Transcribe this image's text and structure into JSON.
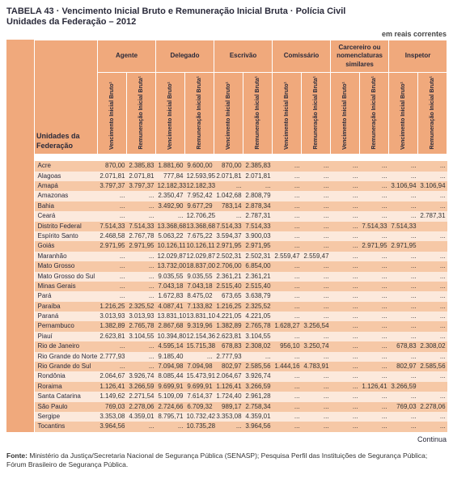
{
  "title": "TABELA 43 · Vencimento Inicial Bruto e Remuneração Inicial Bruta · Polícia Civil",
  "subtitle": "Unidades da Federação – 2012",
  "unit_label": "em reais correntes",
  "uf_header": "Unidades da Federação",
  "groups": [
    "Agente",
    "Delegado",
    "Escrivão",
    "Comissário",
    "Carcereiro ou nomenclaturas similares",
    "Inspetor"
  ],
  "sub_a": "Vencimento Inicial Bruto¹",
  "sub_b": "Remuneração Inicial Bruta¹",
  "continues": "Continua",
  "footer_label": "Fonte:",
  "footer_text": "Ministério da Justiça/Secretaria Nacional de Segurança Pública (SENASP); Pesquisa Perfil das Instituições de Segurança Pública; Fórum Brasileiro de Segurança Pública.",
  "rows": [
    {
      "uf": "Acre",
      "v": [
        "870,00",
        "2.385,83",
        "1.881,60",
        "9.600,00",
        "870,00",
        "2.385,83",
        "...",
        "...",
        "...",
        "...",
        "...",
        "..."
      ]
    },
    {
      "uf": "Alagoas",
      "v": [
        "2.071,81",
        "2.071,81",
        "777,84",
        "12.593,95",
        "2.071,81",
        "2.071,81",
        "...",
        "...",
        "...",
        "...",
        "...",
        "..."
      ]
    },
    {
      "uf": "Amapá",
      "v": [
        "3.797,37",
        "3.797,37",
        "12.182,33",
        "12.182,33",
        "...",
        "...",
        "...",
        "...",
        "...",
        "...",
        "3.106,94",
        "3.106,94"
      ]
    },
    {
      "uf": "Amazonas",
      "v": [
        "...",
        "...",
        "2.350,47",
        "7.952,42",
        "1.042,68",
        "2.808,79",
        "...",
        "...",
        "...",
        "...",
        "...",
        "..."
      ]
    },
    {
      "uf": "Bahia",
      "v": [
        "...",
        "...",
        "3.492,90",
        "9.677,29",
        "783,14",
        "2.878,34",
        "...",
        "...",
        "...",
        "...",
        "...",
        "..."
      ]
    },
    {
      "uf": "Ceará",
      "v": [
        "...",
        "...",
        "...",
        "12.706,25",
        "...",
        "2.787,31",
        "...",
        "...",
        "...",
        "...",
        "...",
        "2.787,31"
      ]
    },
    {
      "uf": "Distrito Federal",
      "v": [
        "7.514,33",
        "7.514,33",
        "13.368,68",
        "13.368,68",
        "7.514,33",
        "7.514,33",
        "...",
        "...",
        "...",
        "7.514,33",
        "7.514,33",
        ""
      ]
    },
    {
      "uf": "Espírito Santo",
      "v": [
        "2.468,58",
        "2.767,78",
        "5.063,22",
        "7.675,22",
        "3.594,37",
        "3.900,03",
        "...",
        "...",
        "...",
        "...",
        "...",
        "..."
      ]
    },
    {
      "uf": "Goiás",
      "v": [
        "2.971,95",
        "2.971,95",
        "10.126,11",
        "10.126,11",
        "2.971,95",
        "2.971,95",
        "...",
        "...",
        "...",
        "2.971,95",
        "2.971,95",
        ""
      ]
    },
    {
      "uf": "Maranhão",
      "v": [
        "...",
        "...",
        "12.029,87",
        "12.029,87",
        "2.502,31",
        "2.502,31",
        "2.559,47",
        "2.559,47",
        "...",
        "...",
        "...",
        "..."
      ]
    },
    {
      "uf": "Mato Grosso",
      "v": [
        "...",
        "...",
        "13.732,00",
        "18.837,00",
        "2.706,00",
        "6.854,00",
        "...",
        "...",
        "...",
        "...",
        "...",
        "..."
      ]
    },
    {
      "uf": "Mato Grosso do Sul",
      "v": [
        "...",
        "...",
        "9.035,55",
        "9.035,55",
        "2.361,21",
        "2.361,21",
        "...",
        "...",
        "...",
        "...",
        "...",
        "..."
      ]
    },
    {
      "uf": "Minas Gerais",
      "v": [
        "...",
        "...",
        "7.043,18",
        "7.043,18",
        "2.515,40",
        "2.515,40",
        "...",
        "...",
        "...",
        "...",
        "...",
        "..."
      ]
    },
    {
      "uf": "Pará",
      "v": [
        "...",
        "...",
        "1.672,83",
        "8.475,02",
        "673,65",
        "3.638,79",
        "...",
        "...",
        "...",
        "...",
        "...",
        "..."
      ]
    },
    {
      "uf": "Paraíba",
      "v": [
        "1.216,25",
        "2.325,52",
        "4.087,41",
        "7.133,82",
        "1.216,25",
        "2.325,52",
        "...",
        "...",
        "...",
        "...",
        "...",
        "..."
      ]
    },
    {
      "uf": "Paraná",
      "v": [
        "3.013,93",
        "3.013,93",
        "13.831,10",
        "13.831,10",
        "4.221,05",
        "4.221,05",
        "...",
        "...",
        "...",
        "...",
        "...",
        "..."
      ]
    },
    {
      "uf": "Pernambuco",
      "v": [
        "1.382,89",
        "2.765,78",
        "2.867,68",
        "9.319,96",
        "1.382,89",
        "2.765,78",
        "1.628,27",
        "3.256,54",
        "...",
        "...",
        "...",
        "..."
      ]
    },
    {
      "uf": "Piauí",
      "v": [
        "2.623,81",
        "3.104,55",
        "10.394,80",
        "12.154,36",
        "2.623,81",
        "3.104,55",
        "...",
        "...",
        "...",
        "...",
        "...",
        "..."
      ]
    },
    {
      "uf": "Rio de Janeiro",
      "v": [
        "...",
        "...",
        "4.595,14",
        "15.715,38",
        "678,83",
        "2.308,02",
        "956,10",
        "3.250,74",
        "...",
        "...",
        "678,83",
        "2.308,02"
      ]
    },
    {
      "uf": "Rio Grande do Norte",
      "v": [
        "2.777,93",
        "...",
        "9.185,40",
        "...",
        "2.777,93",
        "...",
        "...",
        "...",
        "...",
        "...",
        "...",
        "..."
      ]
    },
    {
      "uf": "Rio Grande do Sul",
      "v": [
        "...",
        "...",
        "7.094,98",
        "7.094,98",
        "802,97",
        "2.585,56",
        "1.444,16",
        "4.783,91",
        "...",
        "...",
        "802,97",
        "2.585,56"
      ]
    },
    {
      "uf": "Rondônia",
      "v": [
        "2.064,67",
        "3.926,74",
        "8.085,44",
        "15.473,91",
        "2.064,67",
        "3.926,74",
        "...",
        "...",
        "...",
        "...",
        "...",
        "..."
      ]
    },
    {
      "uf": "Roraima",
      "v": [
        "1.126,41",
        "3.266,59",
        "9.699,91",
        "9.699,91",
        "1.126,41",
        "3.266,59",
        "...",
        "...",
        "...",
        "1.126,41",
        "3.266,59",
        ""
      ]
    },
    {
      "uf": "Santa Catarina",
      "v": [
        "1.149,62",
        "2.271,54",
        "5.109,09",
        "7.614,37",
        "1.724,40",
        "2.961,28",
        "...",
        "...",
        "...",
        "...",
        "...",
        "..."
      ]
    },
    {
      "uf": "São Paulo",
      "v": [
        "769,03",
        "2.278,06",
        "2.724,66",
        "6.709,32",
        "989,17",
        "2.758,34",
        "...",
        "...",
        "...",
        "...",
        "769,03",
        "2.278,06"
      ]
    },
    {
      "uf": "Sergipe",
      "v": [
        "3.353,08",
        "4.359,01",
        "8.795,71",
        "10.732,42",
        "3.353,08",
        "4.359,01",
        "...",
        "...",
        "...",
        "...",
        "...",
        "..."
      ]
    },
    {
      "uf": "Tocantins",
      "v": [
        "3.964,56",
        "...",
        "...",
        "10.735,28",
        "...",
        "3.964,56",
        "...",
        "...",
        "...",
        "...",
        "...",
        "..."
      ]
    }
  ]
}
